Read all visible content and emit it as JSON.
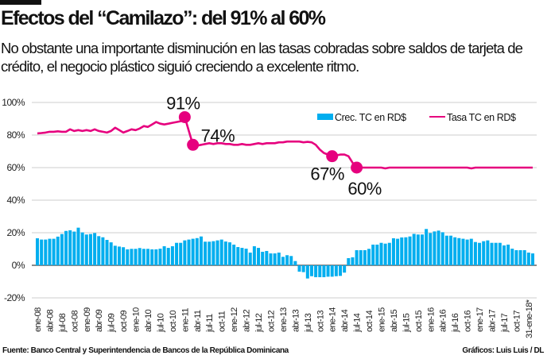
{
  "header": {
    "title": "Efectos del “Camilazo”: del 91% al 60%",
    "subtitle": "No obstante una importante disminución en las tasas cobradas sobre saldos de tarjeta de crédito, el negocio plástico siguió creciendo a excelente ritmo."
  },
  "footer": {
    "source": "Fuente:  Banco Central y Superintendencia de Bancos de la República Dominicana",
    "credit": "Gráficos: Luis Luis / DL"
  },
  "chart_data": {
    "type": "bar+line",
    "ylim": [
      -20,
      100
    ],
    "yticks": [
      100,
      80,
      60,
      40,
      20,
      0,
      -20
    ],
    "ytick_labels": [
      "100%",
      "80%",
      "60%",
      "40%",
      "20%",
      "0%",
      "-20%"
    ],
    "grid": true,
    "legend_position": "top-right",
    "x_tick_labels": [
      "ene-08",
      "abr-08",
      "jul-08",
      "oct-08",
      "ene-09",
      "abr-09",
      "jul-09",
      "oct-09",
      "ene-10",
      "abr-10",
      "jul-10",
      "oct-10",
      "ene-11",
      "abr-11",
      "jul-11",
      "oct-11",
      "ene-12",
      "abr-12",
      "jul-12",
      "oct-12",
      "ene-13",
      "abr-13",
      "jul-13",
      "oct-13",
      "ene-14",
      "abr-14",
      "jul-14",
      "oct-14",
      "ene-15",
      "abr-15",
      "jul-15",
      "oct-15",
      "ene-16",
      "abr-16",
      "jul-16",
      "oct-16",
      "ene-17",
      "abr-17",
      "jul-17",
      "oct-17",
      "31-ene-18*"
    ],
    "colors": {
      "bars": "#00aeef",
      "line": "#e6007e",
      "grid": "#cccccc"
    },
    "series": [
      {
        "name": "Crec. TC en RD$",
        "type": "bar",
        "values": [
          16.6,
          15.8,
          15.8,
          16.3,
          16.3,
          17.6,
          19.2,
          21.1,
          21.5,
          20.7,
          23.1,
          20.2,
          18.9,
          19.2,
          19.8,
          17.9,
          17.2,
          15.6,
          14.1,
          12.0,
          11.5,
          11.1,
          9.8,
          10.1,
          10.1,
          10.6,
          10.1,
          10.1,
          9.8,
          9.8,
          10.2,
          11.7,
          10.7,
          11.7,
          13.8,
          13.8,
          15.3,
          15.8,
          16.3,
          16.7,
          17.7,
          14.5,
          14.5,
          14.8,
          15.3,
          15.8,
          14.6,
          14.1,
          12.7,
          11.2,
          10.7,
          10.2,
          7.8,
          11.7,
          10.7,
          8.3,
          8.8,
          7.3,
          7.3,
          7.8,
          5.2,
          6.2,
          5.7,
          2.6,
          -3.9,
          -4.2,
          -8.1,
          -6.7,
          -7.3,
          -7.3,
          -7.3,
          -7.0,
          -7.0,
          -6.7,
          -6.5,
          -4.5,
          4.4,
          4.9,
          9.3,
          9.3,
          9.3,
          10.1,
          12.7,
          12.7,
          13.8,
          13.3,
          13.8,
          16.6,
          16.3,
          17.1,
          17.2,
          17.7,
          19.3,
          18.9,
          18.9,
          22.3,
          19.8,
          20.8,
          21.3,
          20.3,
          18.2,
          18.2,
          17.2,
          16.7,
          16.3,
          15.8,
          16.3,
          14.3,
          13.8,
          14.8,
          15.3,
          13.8,
          13.8,
          13.8,
          12.2,
          12.7,
          10.2,
          9.3,
          9.3,
          9.3,
          7.8,
          7.3
        ]
      },
      {
        "name": "Tasa TC en RD$",
        "type": "line",
        "values": [
          81,
          81.2,
          81.5,
          82,
          82,
          82.3,
          82,
          82,
          83.5,
          82.5,
          83,
          82.5,
          83,
          82.5,
          83.5,
          82.5,
          82,
          81.5,
          82.5,
          84.5,
          83,
          81.5,
          82.5,
          83.5,
          83,
          84,
          85.5,
          85,
          86.5,
          88,
          87,
          86.5,
          87,
          87.5,
          88,
          88.5,
          91,
          82.5,
          74,
          73.5,
          74,
          74.5,
          75,
          74.5,
          75,
          75,
          74.5,
          74.5,
          74,
          74,
          74.5,
          74,
          74,
          74.5,
          75,
          74.5,
          75,
          75,
          75,
          75.5,
          75.5,
          76,
          76,
          76,
          76,
          75.5,
          75.8,
          75.5,
          74,
          71,
          69,
          68,
          67,
          67.5,
          68,
          68,
          67,
          63,
          60,
          60,
          60,
          60,
          60,
          60,
          60,
          59.5,
          60,
          60,
          60,
          60,
          60,
          60,
          60,
          60,
          60,
          60,
          60,
          60,
          60,
          60,
          60,
          60,
          60,
          60,
          60,
          60,
          59.5,
          60,
          60,
          60,
          60,
          60,
          60,
          60,
          60,
          60,
          60,
          60,
          60,
          60,
          60,
          60
        ]
      }
    ],
    "annotations": [
      {
        "label": "91%",
        "index": 36,
        "value": 91
      },
      {
        "label": "74%",
        "index": 38,
        "value": 74
      },
      {
        "label": "67%",
        "index": 72,
        "value": 67
      },
      {
        "label": "60%",
        "index": 78,
        "value": 60
      }
    ]
  }
}
